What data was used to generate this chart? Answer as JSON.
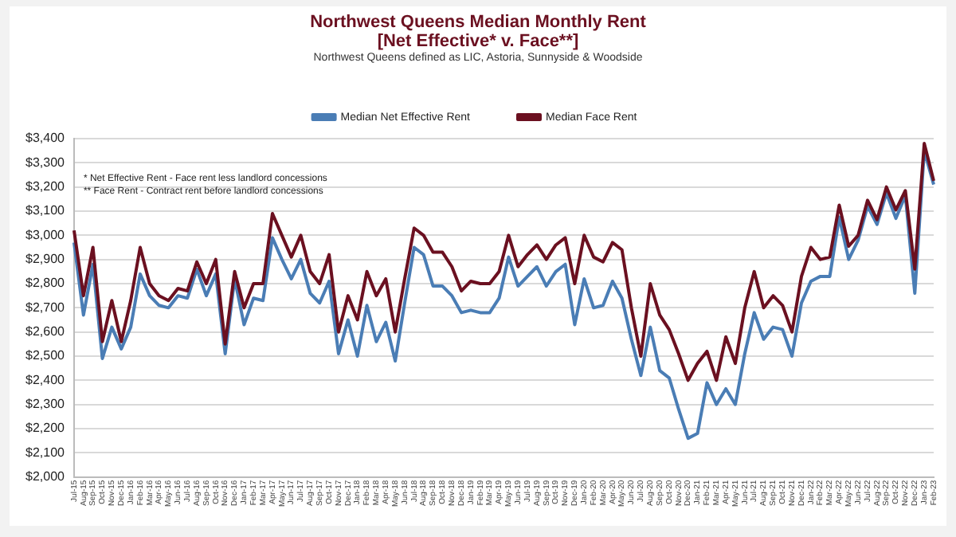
{
  "chart_data": {
    "type": "line",
    "title": "Northwest Queens Median Monthly Rent\n[Net Effective* v. Face**]",
    "subtitle": "Northwest Queens defined as LIC, Astoria, Sunnyside & Woodside",
    "annotations": [
      "* Net Effective Rent - Face rent less landlord concessions",
      "** Face Rent - Contract rent before landlord concessions"
    ],
    "categories": [
      "Jul-15",
      "Aug-15",
      "Sep-15",
      "Oct-15",
      "Nov-15",
      "Dec-15",
      "Jan-16",
      "Feb-16",
      "Mar-16",
      "Apr-16",
      "May-16",
      "Jun-16",
      "Jul-16",
      "Aug-16",
      "Sep-16",
      "Oct-16",
      "Nov-16",
      "Dec-16",
      "Jan-17",
      "Feb-17",
      "Mar-17",
      "Apr-17",
      "May-17",
      "Jun-17",
      "Jul-17",
      "Aug-17",
      "Sep-17",
      "Oct-17",
      "Nov-17",
      "Dec-17",
      "Jan-18",
      "Feb-18",
      "Mar-18",
      "Apr-18",
      "May-18",
      "Jun-18",
      "Jul-18",
      "Aug-18",
      "Sep-18",
      "Oct-18",
      "Nov-18",
      "Dec-18",
      "Jan-19",
      "Feb-19",
      "Mar-19",
      "Apr-19",
      "May-19",
      "Jun-19",
      "Jul-19",
      "Aug-19",
      "Sep-19",
      "Oct-19",
      "Nov-19",
      "Dec-19",
      "Jan-20",
      "Feb-20",
      "Mar-20",
      "Apr-20",
      "May-20",
      "Jun-20",
      "Jul-20",
      "Aug-20",
      "Sep-20",
      "Oct-20",
      "Nov-20",
      "Dec-20",
      "Jan-21",
      "Feb-21",
      "Mar-21",
      "Apr-21",
      "May-21",
      "Jun-21",
      "Jul-21",
      "Aug-21",
      "Sep-21",
      "Oct-21",
      "Nov-21",
      "Dec-21",
      "Jan-22",
      "Feb-22",
      "Mar-22",
      "Apr-22",
      "May-22",
      "Jun-22",
      "Jul-22",
      "Aug-22",
      "Sep-22",
      "Oct-22",
      "Nov-22",
      "Dec-22",
      "Jan-23",
      "Feb-23"
    ],
    "series": [
      {
        "name": "Median Net Effective Rent",
        "color": "#4a7db5",
        "values": [
          2970,
          2670,
          2880,
          2490,
          2620,
          2530,
          2620,
          2840,
          2750,
          2710,
          2700,
          2750,
          2740,
          2860,
          2750,
          2840,
          2510,
          2820,
          2630,
          2740,
          2730,
          2990,
          2900,
          2820,
          2900,
          2760,
          2720,
          2810,
          2510,
          2650,
          2500,
          2710,
          2560,
          2640,
          2480,
          2720,
          2950,
          2920,
          2790,
          2790,
          2750,
          2680,
          2690,
          2680,
          2680,
          2740,
          2910,
          2790,
          2830,
          2870,
          2790,
          2850,
          2880,
          2630,
          2820,
          2700,
          2710,
          2810,
          2740,
          2570,
          2420,
          2620,
          2440,
          2410,
          2280,
          2160,
          2180,
          2390,
          2300,
          2365,
          2300,
          2510,
          2680,
          2570,
          2620,
          2610,
          2500,
          2720,
          2810,
          2830,
          2830,
          3075,
          2900,
          2980,
          3120,
          3045,
          3175,
          3070,
          3165,
          2760,
          3350,
          3210
        ]
      },
      {
        "name": "Median Face Rent",
        "color": "#6b1020",
        "values": [
          3020,
          2750,
          2950,
          2560,
          2730,
          2560,
          2730,
          2950,
          2800,
          2750,
          2730,
          2780,
          2770,
          2890,
          2800,
          2900,
          2550,
          2850,
          2700,
          2800,
          2800,
          3090,
          3000,
          2910,
          3000,
          2850,
          2800,
          2920,
          2600,
          2750,
          2650,
          2850,
          2750,
          2820,
          2600,
          2820,
          3030,
          3000,
          2930,
          2930,
          2870,
          2770,
          2810,
          2800,
          2800,
          2850,
          3000,
          2870,
          2920,
          2960,
          2900,
          2960,
          2990,
          2800,
          3000,
          2910,
          2890,
          2970,
          2940,
          2700,
          2500,
          2800,
          2670,
          2610,
          2510,
          2400,
          2470,
          2520,
          2400,
          2580,
          2470,
          2700,
          2850,
          2700,
          2750,
          2710,
          2600,
          2830,
          2950,
          2900,
          2910,
          3125,
          2955,
          3000,
          3145,
          3065,
          3200,
          3105,
          3185,
          2860,
          3380,
          3225
        ]
      }
    ],
    "ylim": [
      2000,
      3400
    ],
    "yticks": [
      {
        "value": 2000,
        "label": "$2,000"
      },
      {
        "value": 2100,
        "label": "$2,100"
      },
      {
        "value": 2200,
        "label": "$2,200"
      },
      {
        "value": 2300,
        "label": "$2,300"
      },
      {
        "value": 2400,
        "label": "$2,400"
      },
      {
        "value": 2500,
        "label": "$2,500"
      },
      {
        "value": 2600,
        "label": "$2,600"
      },
      {
        "value": 2700,
        "label": "$2,700"
      },
      {
        "value": 2800,
        "label": "$2,800"
      },
      {
        "value": 2900,
        "label": "$2,900"
      },
      {
        "value": 3000,
        "label": "$3,000"
      },
      {
        "value": 3100,
        "label": "$3,100"
      },
      {
        "value": 3200,
        "label": "$3,200"
      },
      {
        "value": 3300,
        "label": "$3,300"
      },
      {
        "value": 3400,
        "label": "$3,400"
      }
    ],
    "grid": "y",
    "legend": "top",
    "marker": "none",
    "line_style": "solid"
  }
}
